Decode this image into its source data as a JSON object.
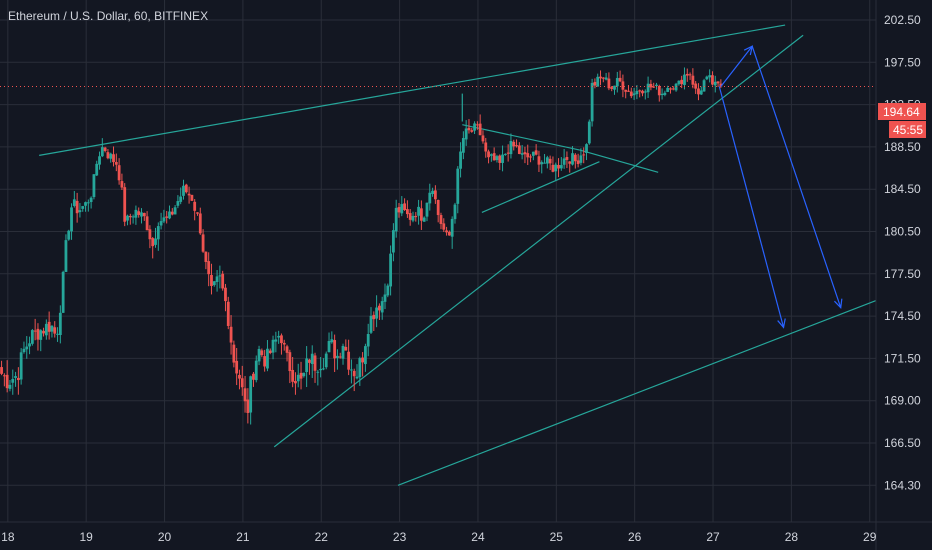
{
  "chart_data": {
    "type": "candlestick",
    "title": "Ethereum / U.S. Dollar, 60, BITFINEX",
    "y_ticks": [
      202.5,
      197.5,
      192.5,
      188.5,
      184.5,
      180.5,
      177.5,
      174.5,
      171.5,
      169.0,
      166.5,
      164.3
    ],
    "x_ticks": [
      "18",
      "19",
      "20",
      "21",
      "22",
      "23",
      "24",
      "25",
      "26",
      "27",
      "28",
      "29"
    ],
    "x_tick_values": [
      18,
      19,
      20,
      21,
      22,
      23,
      24,
      25,
      26,
      27,
      28,
      29
    ],
    "xlim": [
      17.9,
      29.08
    ],
    "current_price": {
      "value": 194.64,
      "label": "194.64",
      "countdown": "45:55"
    },
    "colors": {
      "background": "#131722",
      "grid": "#2a2e39",
      "up": "#26a69a",
      "down": "#ef5350",
      "trendline": "#26a69a",
      "projection": "#2962ff",
      "price_line": "#ef5350",
      "text": "#d1d4dc"
    },
    "anchors": [
      [
        17.92,
        170.6
      ],
      [
        18.0,
        170.2
      ],
      [
        18.12,
        170.5
      ],
      [
        18.2,
        172.0
      ],
      [
        18.3,
        173.1
      ],
      [
        18.45,
        173.6
      ],
      [
        18.55,
        173.9
      ],
      [
        18.62,
        173.0
      ],
      [
        18.7,
        176.7
      ],
      [
        18.74,
        179.2
      ],
      [
        18.82,
        183.2
      ],
      [
        18.9,
        182.5
      ],
      [
        19.0,
        183.1
      ],
      [
        19.08,
        184.4
      ],
      [
        19.15,
        187.7
      ],
      [
        19.22,
        188.6
      ],
      [
        19.3,
        187.6
      ],
      [
        19.4,
        186.9
      ],
      [
        19.46,
        183.9
      ],
      [
        19.5,
        181.2
      ],
      [
        19.62,
        182.5
      ],
      [
        19.75,
        181.7
      ],
      [
        19.85,
        179.5
      ],
      [
        19.92,
        181.6
      ],
      [
        20.05,
        181.6
      ],
      [
        20.15,
        183.1
      ],
      [
        20.25,
        184.5
      ],
      [
        20.35,
        183.7
      ],
      [
        20.45,
        181.1
      ],
      [
        20.52,
        178.2
      ],
      [
        20.6,
        176.0
      ],
      [
        20.7,
        177.2
      ],
      [
        20.8,
        175.0
      ],
      [
        20.88,
        171.5
      ],
      [
        20.95,
        170.6
      ],
      [
        21.05,
        168.1
      ],
      [
        21.12,
        170.6
      ],
      [
        21.2,
        172.1
      ],
      [
        21.3,
        171.4
      ],
      [
        21.4,
        172.5
      ],
      [
        21.48,
        173.4
      ],
      [
        21.55,
        171.5
      ],
      [
        21.65,
        170.6
      ],
      [
        21.75,
        170.0
      ],
      [
        21.85,
        171.6
      ],
      [
        21.92,
        171.2
      ],
      [
        22.05,
        171.6
      ],
      [
        22.12,
        172.6
      ],
      [
        22.2,
        171.6
      ],
      [
        22.28,
        172.7
      ],
      [
        22.36,
        171.2
      ],
      [
        22.45,
        170.6
      ],
      [
        22.52,
        171.5
      ],
      [
        22.6,
        173.9
      ],
      [
        22.7,
        175.2
      ],
      [
        22.8,
        175.7
      ],
      [
        22.88,
        178.3
      ],
      [
        22.95,
        182.4
      ],
      [
        23.02,
        182.6
      ],
      [
        23.12,
        181.8
      ],
      [
        23.22,
        182.5
      ],
      [
        23.3,
        181.9
      ],
      [
        23.36,
        184.0
      ],
      [
        23.42,
        185.0
      ],
      [
        23.48,
        182.4
      ],
      [
        23.55,
        180.9
      ],
      [
        23.62,
        179.5
      ],
      [
        23.7,
        183.1
      ],
      [
        23.76,
        187.1
      ],
      [
        23.82,
        189.6
      ],
      [
        23.9,
        189.9
      ],
      [
        23.98,
        190.2
      ],
      [
        24.05,
        189.5
      ],
      [
        24.12,
        187.1
      ],
      [
        24.18,
        187.3
      ],
      [
        24.28,
        186.8
      ],
      [
        24.38,
        188.4
      ],
      [
        24.48,
        188.5
      ],
      [
        24.58,
        187.4
      ],
      [
        24.68,
        187.6
      ],
      [
        24.78,
        187.4
      ],
      [
        24.88,
        186.9
      ],
      [
        24.98,
        186.5
      ],
      [
        25.08,
        187.3
      ],
      [
        25.16,
        187.6
      ],
      [
        25.24,
        187.1
      ],
      [
        25.32,
        187.9
      ],
      [
        25.4,
        188.7
      ],
      [
        25.45,
        194.7
      ],
      [
        25.52,
        195.2
      ],
      [
        25.6,
        195.7
      ],
      [
        25.7,
        194.5
      ],
      [
        25.8,
        195.3
      ],
      [
        25.88,
        194.5
      ],
      [
        25.96,
        193.8
      ],
      [
        26.05,
        194.2
      ],
      [
        26.15,
        194.7
      ],
      [
        26.25,
        194.5
      ],
      [
        26.35,
        193.9
      ],
      [
        26.45,
        194.9
      ],
      [
        26.55,
        194.6
      ],
      [
        26.62,
        195.9
      ],
      [
        26.7,
        196.4
      ],
      [
        26.75,
        195.0
      ],
      [
        26.8,
        193.4
      ],
      [
        26.88,
        195.2
      ],
      [
        26.96,
        195.4
      ],
      [
        27.03,
        194.6
      ],
      [
        27.1,
        194.64
      ]
    ],
    "annotations": {
      "trendlines": [
        {
          "from": [
            18.4,
            187.7
          ],
          "to": [
            27.92,
            201.9
          ]
        },
        {
          "from": [
            21.4,
            166.3
          ],
          "to": [
            28.15,
            200.7
          ]
        },
        {
          "from": [
            23.8,
            190.6
          ],
          "to": [
            25.3,
            188.2
          ]
        },
        {
          "from": [
            25.3,
            188.2
          ],
          "to": [
            26.3,
            186.1
          ]
        },
        {
          "from": [
            24.05,
            182.3
          ],
          "to": [
            25.55,
            187.1
          ]
        },
        {
          "from": [
            22.98,
            164.3
          ],
          "to": [
            29.08,
            175.6
          ]
        },
        {
          "from": [
            23.8,
            193.8
          ],
          "to": [
            23.8,
            190.9
          ]
        }
      ],
      "projection_arrows": [
        {
          "from": [
            27.1,
            194.64
          ],
          "to": [
            27.5,
            199.4
          ]
        },
        {
          "from": [
            27.5,
            199.4
          ],
          "to": [
            28.63,
            175.1
          ]
        },
        {
          "from": [
            27.08,
            194.64
          ],
          "to": [
            27.9,
            173.7
          ]
        }
      ]
    }
  }
}
